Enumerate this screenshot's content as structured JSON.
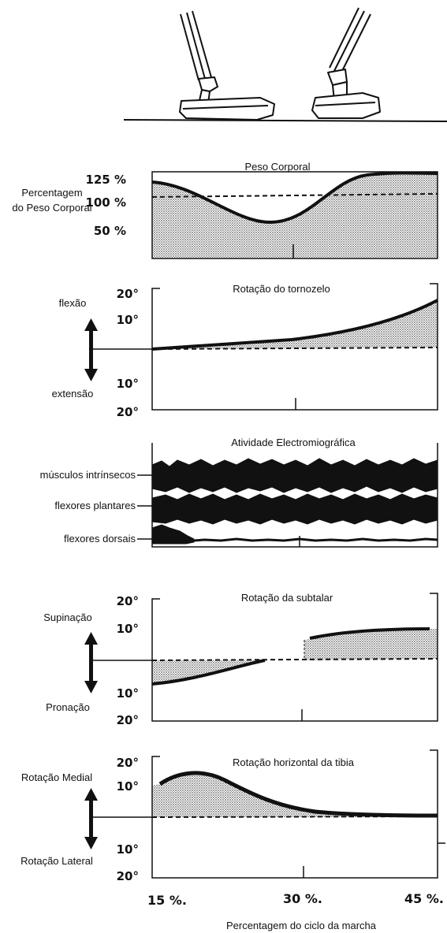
{
  "header": {
    "feet": [
      "left-foot-contact",
      "right-foot-contact"
    ]
  },
  "panels": {
    "peso": {
      "title": "Peso Corporal",
      "ylabel_lines": [
        "Percentagem",
        "do Peso Corporal"
      ],
      "ticks": [
        "125 %",
        "100 %",
        "50 %"
      ]
    },
    "tornozelo": {
      "title": "Rotação do tornozelo",
      "upper_label": "flexão",
      "lower_label": "extensão",
      "ticks": [
        "20°",
        "10°",
        "10°",
        "20°"
      ]
    },
    "emg": {
      "title": "Atividade Electromiográfica",
      "channels": [
        "músculos intrínsecos",
        "flexores plantares",
        "flexores dorsais"
      ]
    },
    "subtalar": {
      "title": "Rotação da subtalar",
      "upper_label": "Supinação",
      "lower_label": "Pronação",
      "ticks": [
        "20°",
        "10°",
        "10°",
        "20°"
      ]
    },
    "tibia": {
      "title": "Rotação horizontal da tibia",
      "upper_label": "Rotação Medial",
      "lower_label": "Rotação Lateral",
      "ticks": [
        "20°",
        "10°",
        "10°",
        "20°"
      ]
    }
  },
  "x_ticks": [
    "15 %.",
    "30 %.",
    "45 %."
  ],
  "x_title": "Percentagem do ciclo da marcha",
  "colors": {
    "ink": "#111111",
    "shade": "#9a9a9a"
  }
}
